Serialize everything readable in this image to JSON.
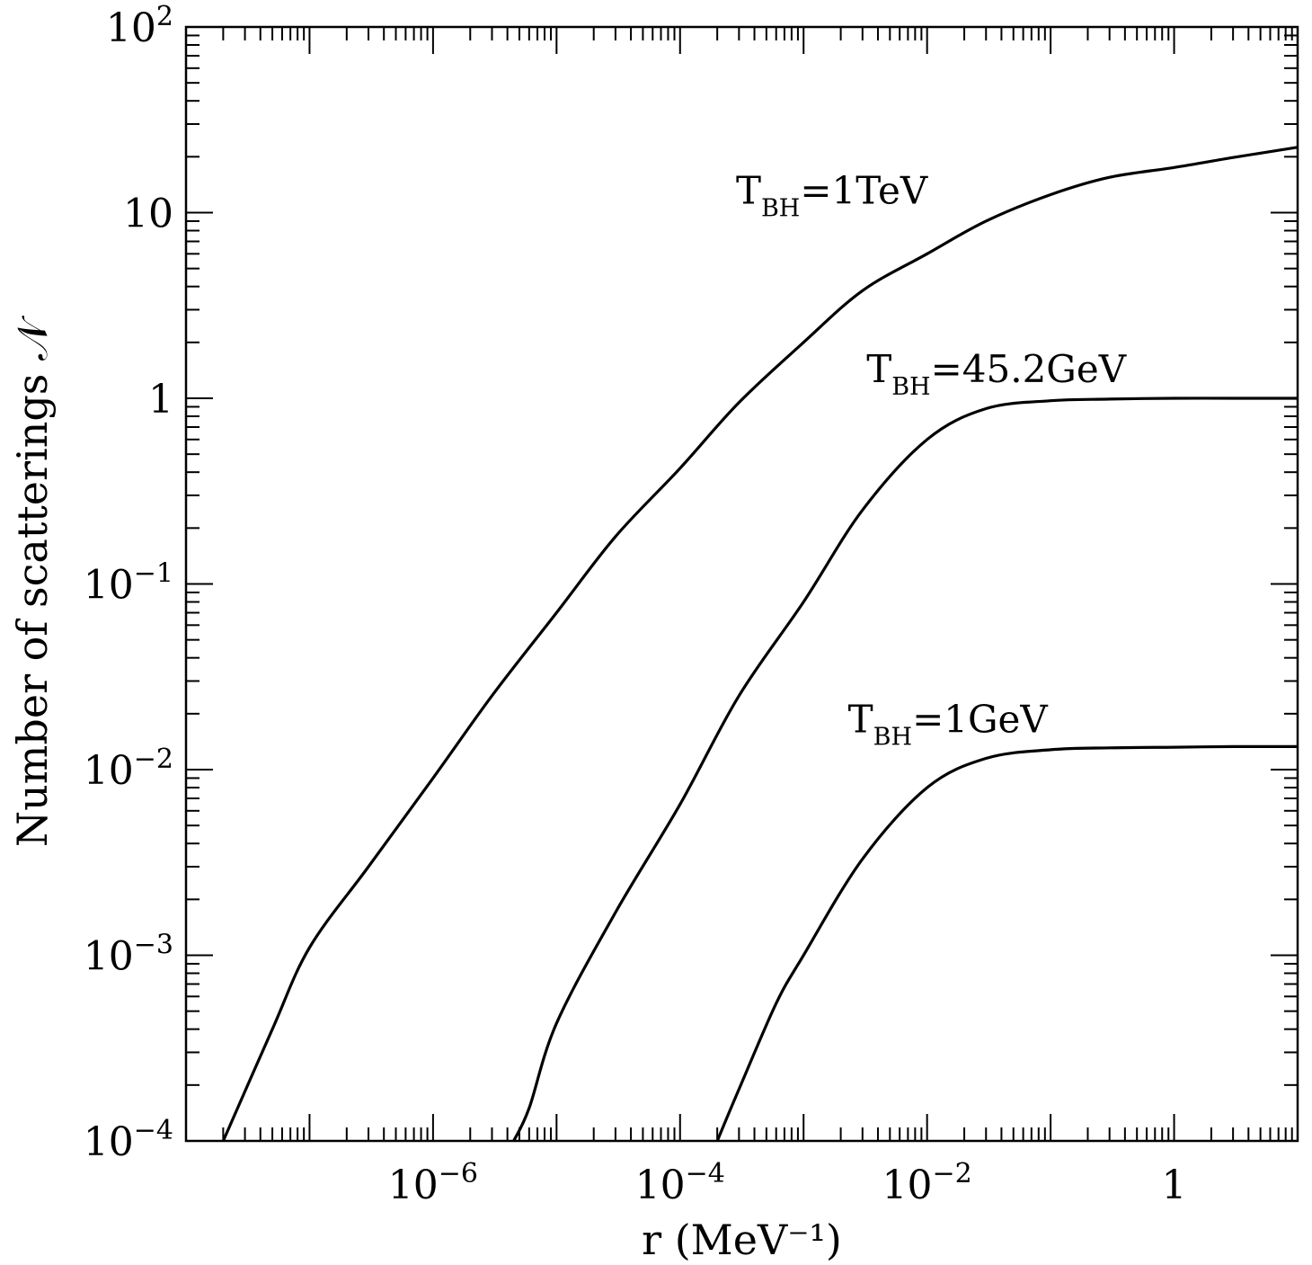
{
  "chart_data": {
    "type": "line",
    "xlabel": "r (MeV⁻¹)",
    "ylabel": "Number of scatterings 𝒩",
    "x_scale": "log",
    "y_scale": "log",
    "xlim": [
      1e-08,
      10
    ],
    "ylim": [
      0.0001,
      100
    ],
    "grid": false,
    "x_ticks": [
      {
        "value": 1e-06,
        "base": "10",
        "exp": "−6"
      },
      {
        "value": 0.0001,
        "base": "10",
        "exp": "−4"
      },
      {
        "value": 0.01,
        "base": "10",
        "exp": "−2"
      },
      {
        "value": 1,
        "base": "1",
        "exp": ""
      }
    ],
    "y_ticks": [
      {
        "value": 0.0001,
        "base": "10",
        "exp": "−4"
      },
      {
        "value": 0.001,
        "base": "10",
        "exp": "−3"
      },
      {
        "value": 0.01,
        "base": "10",
        "exp": "−2"
      },
      {
        "value": 0.1,
        "base": "10",
        "exp": "−1"
      },
      {
        "value": 1,
        "base": "1",
        "exp": ""
      },
      {
        "value": 10,
        "base": "10",
        "exp": ""
      },
      {
        "value": 100,
        "base": "10",
        "exp": "2"
      }
    ],
    "series": [
      {
        "label_main": "T",
        "label_sub": "BH",
        "label_rest": "=1TeV",
        "label_at": [
          0.002,
          10
        ],
        "x": [
          2e-08,
          5e-08,
          1e-07,
          3e-07,
          1e-06,
          3e-06,
          1e-05,
          3e-05,
          0.0001,
          0.0003,
          0.001,
          0.003,
          0.01,
          0.03,
          0.1,
          0.3,
          1,
          3,
          10
        ],
        "y": [
          0.0001,
          0.0004,
          0.0011,
          0.003,
          0.009,
          0.025,
          0.07,
          0.18,
          0.42,
          0.95,
          2.0,
          3.8,
          6.0,
          9.0,
          12.5,
          15.5,
          17.5,
          19.8,
          22.5
        ]
      },
      {
        "label_main": "T",
        "label_sub": "BH",
        "label_rest": "=45.2GeV",
        "label_at": [
          0.06,
          1.0
        ],
        "x": [
          4.5e-06,
          6e-06,
          1e-05,
          3e-05,
          0.0001,
          0.0003,
          0.001,
          0.003,
          0.01,
          0.03,
          0.1,
          0.3,
          1,
          3,
          10
        ],
        "y": [
          0.0001,
          0.00015,
          0.00043,
          0.0017,
          0.0065,
          0.025,
          0.08,
          0.25,
          0.6,
          0.88,
          0.97,
          0.99,
          1.0,
          1.0,
          1.0
        ]
      },
      {
        "label_main": "T",
        "label_sub": "BH",
        "label_rest": "=1GeV",
        "label_at": [
          0.3,
          0.013
        ],
        "x": [
          0.0002,
          0.0003,
          0.0006,
          0.001,
          0.003,
          0.01,
          0.03,
          0.1,
          0.3,
          1,
          3,
          10
        ],
        "y": [
          0.0001,
          0.00019,
          0.00055,
          0.001,
          0.0033,
          0.008,
          0.0115,
          0.0128,
          0.0131,
          0.0132,
          0.0133,
          0.0133
        ]
      }
    ]
  }
}
